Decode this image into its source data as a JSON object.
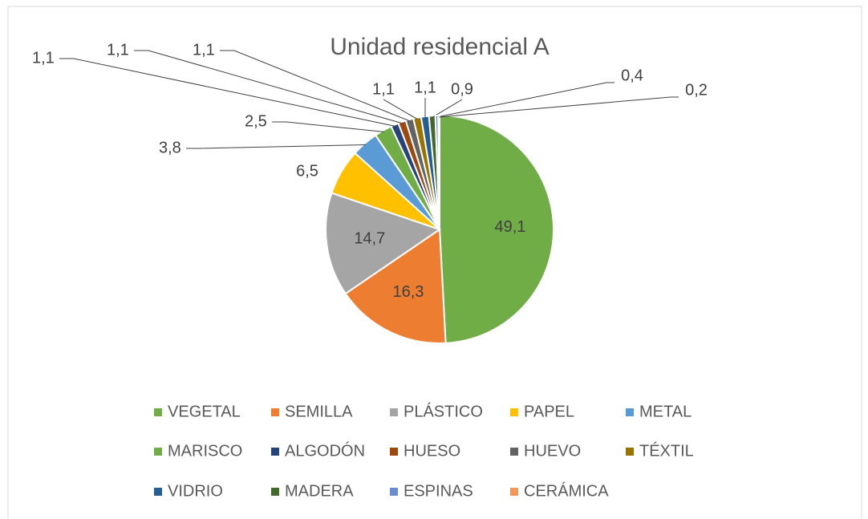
{
  "chart_data": {
    "type": "pie",
    "title": "Unidad residencial A",
    "categories": [
      "VEGETAL",
      "SEMILLA",
      "PLÁSTICO",
      "PAPEL",
      "METAL",
      "MARISCO",
      "ALGODÓN",
      "HUESO",
      "HUEVO",
      "TÉXTIL",
      "VIDRIO",
      "MADERA",
      "ESPINAS",
      "CERÁMICA"
    ],
    "values": [
      49.1,
      16.3,
      14.7,
      6.5,
      3.8,
      2.5,
      1.1,
      1.1,
      1.1,
      1.1,
      1.1,
      0.9,
      0.4,
      0.2
    ],
    "value_labels": [
      "49,1",
      "16,3",
      "14,7",
      "6,5",
      "3,8",
      "2,5",
      "1,1",
      "1,1",
      "1,1",
      "1,1",
      "1,1",
      "0,9",
      "0,4",
      "0,2"
    ],
    "colors": [
      "#70ad47",
      "#ed7d31",
      "#a5a5a5",
      "#ffc000",
      "#5b9bd5",
      "#70ad47",
      "#264478",
      "#9e480e",
      "#636363",
      "#997300",
      "#255e91",
      "#43682b",
      "#698ed0",
      "#f1975a"
    ],
    "legend": "bottom"
  }
}
